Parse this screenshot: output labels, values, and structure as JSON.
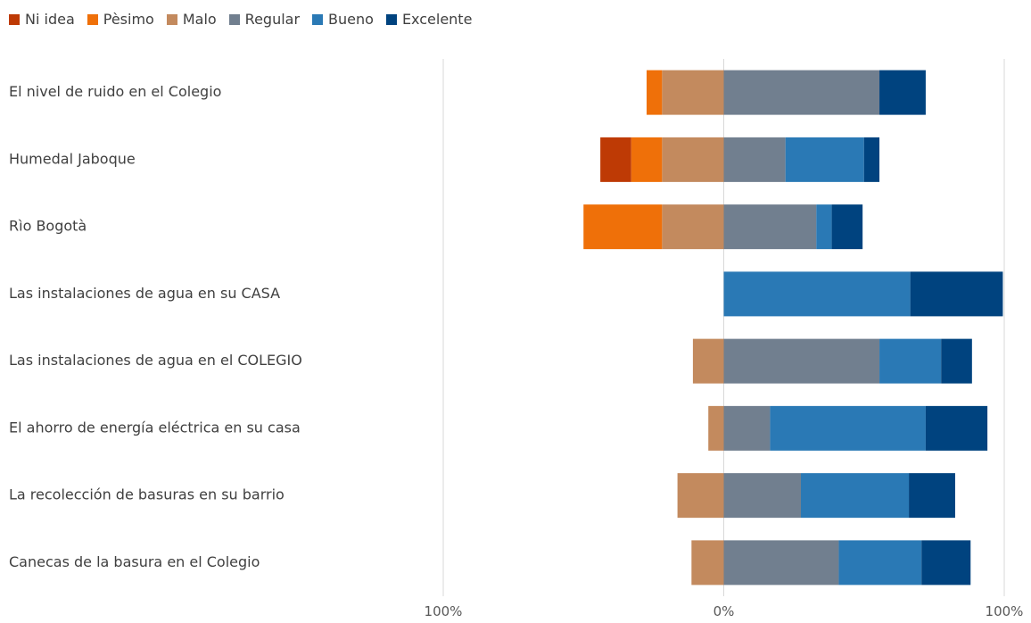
{
  "chart_data": {
    "type": "bar",
    "orientation": "horizontal",
    "stacked": "diverging",
    "legend_position": "top-left",
    "grid": true,
    "xlim": [
      -100,
      100
    ],
    "x_tick_labels": [
      "100%",
      "0%",
      "100%"
    ],
    "categories": [
      "El nivel de ruido en el Colegio",
      "Humedal Jaboque",
      "Rìo Bogotà",
      "Las instalaciones de agua en su CASA",
      "Las instalaciones de agua en el COLEGIO",
      "El ahorro de energía eléctrica en su casa",
      "La recolección de basuras en su barrio",
      "Canecas de la basura en el Colegio"
    ],
    "series": [
      {
        "name": "Ni idea",
        "color": "#BE3A05",
        "side": "negative",
        "values": [
          0,
          11,
          0,
          0,
          0,
          0,
          0,
          0
        ]
      },
      {
        "name": "Pèsimo",
        "color": "#EF7009",
        "side": "negative",
        "values": [
          5.5,
          11,
          28,
          0,
          0,
          0,
          0,
          0
        ]
      },
      {
        "name": "Malo",
        "color": "#C38A5E",
        "side": "negative",
        "values": [
          22,
          22,
          22,
          0,
          11,
          5.5,
          16.5,
          11.5
        ]
      },
      {
        "name": "Regular",
        "color": "#717F8F",
        "side": "positive",
        "values": [
          55.5,
          22,
          33,
          0,
          55.5,
          16.5,
          27.5,
          41
        ]
      },
      {
        "name": "Bueno",
        "color": "#2A79B5",
        "side": "positive",
        "values": [
          0,
          28,
          5.5,
          66.5,
          22,
          55.5,
          38.5,
          29.5
        ]
      },
      {
        "name": "Excelente",
        "color": "#00437F",
        "side": "positive",
        "values": [
          16.5,
          5.5,
          11,
          33,
          11,
          22,
          16.5,
          17.5
        ]
      }
    ]
  }
}
